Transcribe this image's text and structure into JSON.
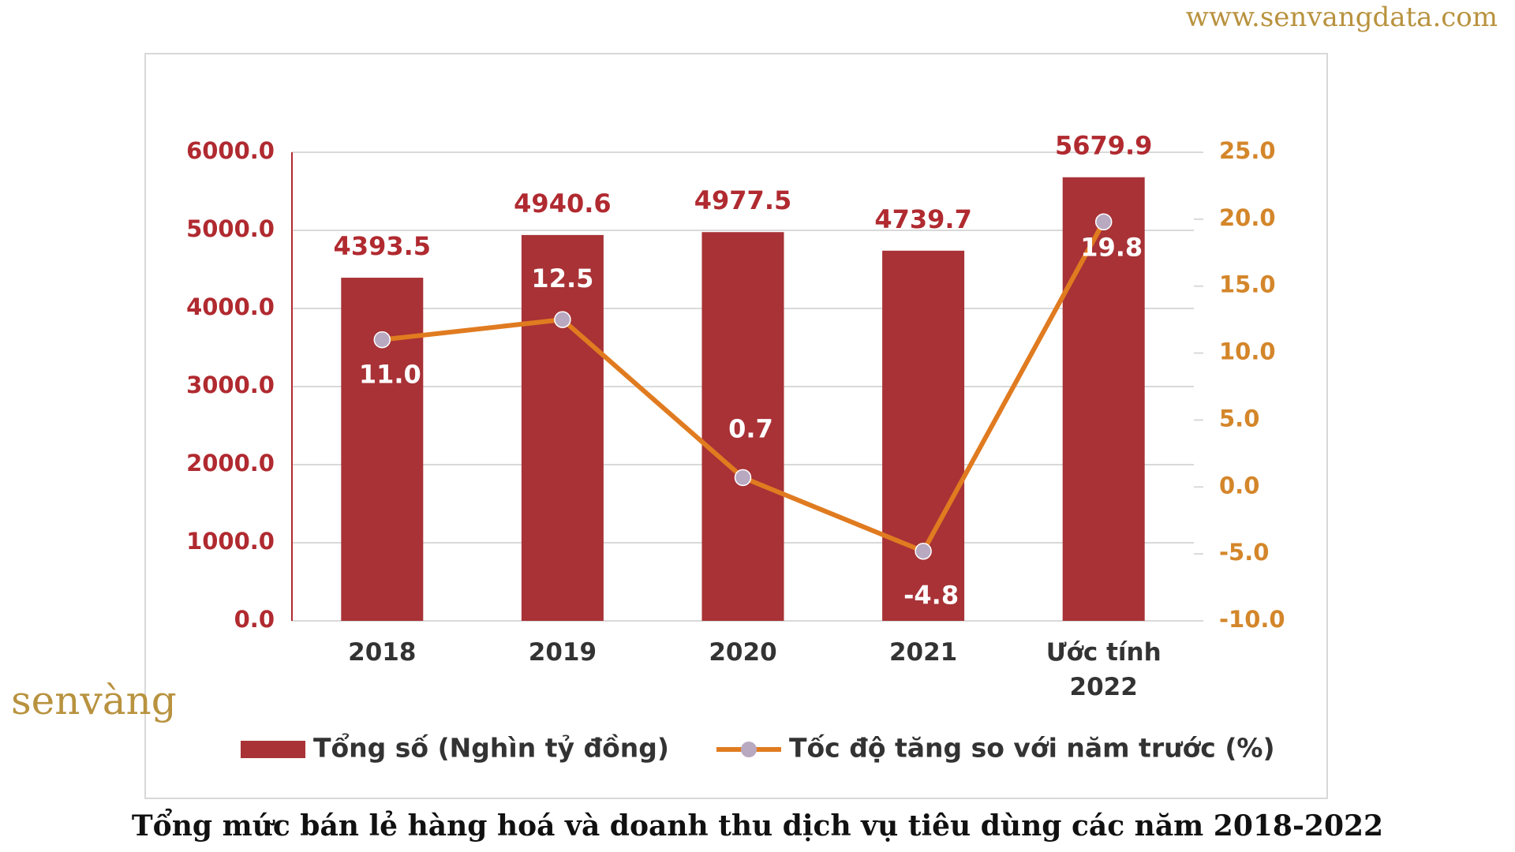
{
  "watermark": "www.senvangdata.com",
  "logo": "senvàng",
  "chart_data": {
    "type": "bar",
    "title": "Tổng mức bán lẻ hàng hoá và doanh thu dịch vụ tiêu dùng các năm 2018-2022",
    "categories": [
      "2018",
      "2019",
      "2020",
      "2021",
      "Ước tính 2022"
    ],
    "series": [
      {
        "name": "Tổng số (Nghìn tỷ đồng)",
        "type": "bar",
        "color": "#a83236",
        "values": [
          4393.5,
          4940.6,
          4977.5,
          4739.7,
          5679.9
        ]
      },
      {
        "name": "Tốc độ tăng so với năm trước (%)",
        "type": "line",
        "axis": "y2",
        "color": "#e07b20",
        "marker_color": "#b8a8c0",
        "values": [
          11.0,
          12.5,
          0.7,
          -4.8,
          19.8
        ],
        "value_labels": [
          "11.0",
          "12.5",
          "0.7",
          "-4.8",
          "19.8"
        ]
      }
    ],
    "ylim": [
      0,
      6000
    ],
    "yticks": [
      {
        "value": 0,
        "label": "0.0"
      },
      {
        "value": 1000,
        "label": "1000.0"
      },
      {
        "value": 2000,
        "label": "2000.0"
      },
      {
        "value": 3000,
        "label": "3000.0"
      },
      {
        "value": 4000,
        "label": "4000.0"
      },
      {
        "value": 5000,
        "label": "5000.0"
      },
      {
        "value": 6000,
        "label": "6000.0"
      }
    ],
    "y2lim": [
      -10,
      25
    ],
    "y2ticks": [
      {
        "value": -10,
        "label": "-10.0"
      },
      {
        "value": -5,
        "label": "-5.0"
      },
      {
        "value": 0,
        "label": "0.0"
      },
      {
        "value": 5,
        "label": "5.0"
      },
      {
        "value": 10,
        "label": "10.0"
      },
      {
        "value": 15,
        "label": "15.0"
      },
      {
        "value": 20,
        "label": "20.0"
      },
      {
        "value": 25,
        "label": "25.0"
      }
    ],
    "grid": true,
    "legend": "bottom"
  }
}
